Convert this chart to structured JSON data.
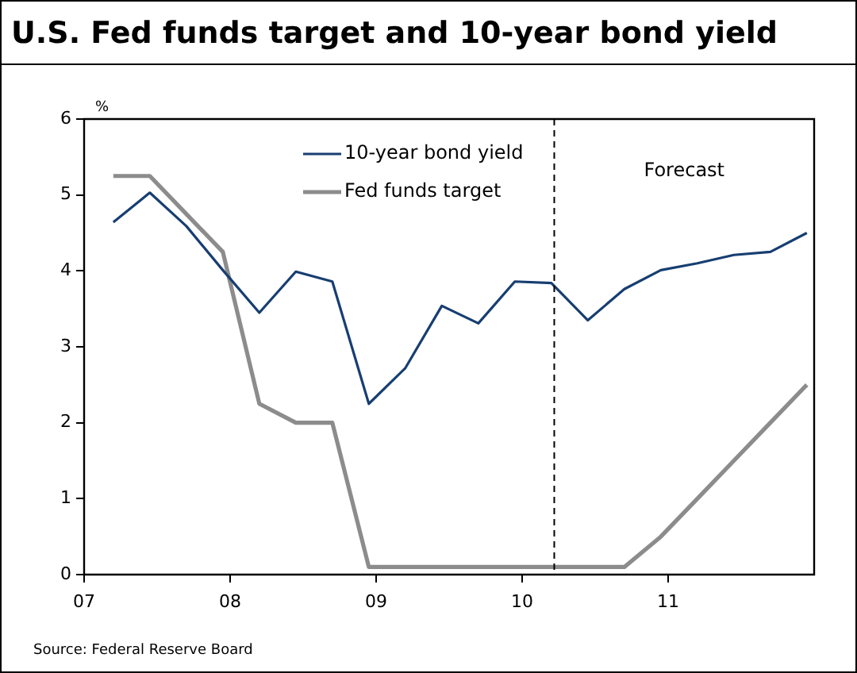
{
  "chart_data": {
    "type": "line",
    "title": "U.S. Fed funds target and 10-year bond yield",
    "ylabel": "%",
    "x": [
      2007.2,
      2007.45,
      2007.7,
      2007.95,
      2008.2,
      2008.45,
      2008.7,
      2008.95,
      2009.2,
      2009.45,
      2009.7,
      2009.95,
      2010.2,
      2010.45,
      2010.7,
      2010.95,
      2011.2,
      2011.45,
      2011.7,
      2011.95
    ],
    "series": [
      {
        "name": "10-year bond yield",
        "color": "#173e71",
        "values": [
          4.64,
          5.03,
          4.59,
          4.01,
          3.45,
          3.99,
          3.86,
          2.25,
          2.72,
          3.54,
          3.31,
          3.86,
          3.84,
          3.35,
          3.76,
          4.01,
          4.1,
          4.21,
          4.25,
          4.5
        ]
      },
      {
        "name": "Fed funds target",
        "color": "#8c8c8c",
        "values": [
          5.25,
          5.25,
          4.75,
          4.25,
          2.25,
          2.0,
          2.0,
          0.1,
          0.1,
          0.1,
          0.1,
          0.1,
          0.1,
          0.1,
          0.1,
          0.5,
          1.0,
          1.5,
          2.0,
          2.5
        ]
      }
    ],
    "xlim": [
      2007,
      2012
    ],
    "xticks": [
      {
        "value": 2007,
        "label": "07"
      },
      {
        "value": 2008,
        "label": "08"
      },
      {
        "value": 2009,
        "label": "09"
      },
      {
        "value": 2010,
        "label": "10"
      },
      {
        "value": 2011,
        "label": "11"
      }
    ],
    "ylim": [
      0,
      6
    ],
    "yticks": [
      0,
      1,
      2,
      3,
      4,
      5,
      6
    ],
    "ref_lines": [
      {
        "axis": "x",
        "value": 2010.22,
        "line_style": "dashed",
        "color": "#000000"
      }
    ],
    "annotations": [
      "Forecast",
      "Source: Federal Reserve Board"
    ],
    "legend": "top",
    "grid": false,
    "marker": "none",
    "line_style": "solid"
  }
}
